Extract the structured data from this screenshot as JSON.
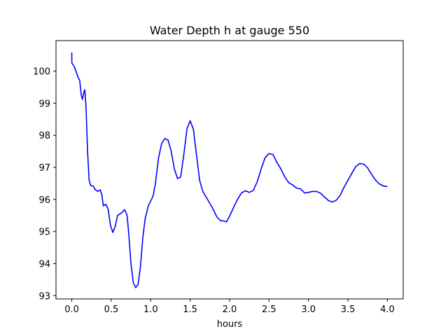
{
  "chart_data": {
    "type": "line",
    "title": "Water Depth h at gauge 550",
    "xlabel": "hours",
    "ylabel": "",
    "xlim": [
      -0.2,
      4.2
    ],
    "ylim": [
      92.9,
      100.95
    ],
    "xticks": [
      0.0,
      0.5,
      1.0,
      1.5,
      2.0,
      2.5,
      3.0,
      3.5,
      4.0
    ],
    "xtick_labels": [
      "0.0",
      "0.5",
      "1.0",
      "1.5",
      "2.0",
      "2.5",
      "3.0",
      "3.5",
      "4.0"
    ],
    "yticks": [
      93,
      94,
      95,
      96,
      97,
      98,
      99,
      100
    ],
    "ytick_labels": [
      "93",
      "94",
      "95",
      "96",
      "97",
      "98",
      "99",
      "100"
    ],
    "grid": false,
    "colors": {
      "line": "#0000ff",
      "axes": "#000000",
      "background": "#ffffff"
    },
    "series": [
      {
        "points": [
          [
            0.0,
            100.58
          ],
          [
            0.001,
            100.25
          ],
          [
            0.03,
            100.15
          ],
          [
            0.06,
            99.95
          ],
          [
            0.08,
            99.8
          ],
          [
            0.1,
            99.72
          ],
          [
            0.12,
            99.25
          ],
          [
            0.135,
            99.12
          ],
          [
            0.15,
            99.3
          ],
          [
            0.165,
            99.42
          ],
          [
            0.18,
            98.9
          ],
          [
            0.2,
            97.5
          ],
          [
            0.22,
            96.6
          ],
          [
            0.24,
            96.43
          ],
          [
            0.27,
            96.42
          ],
          [
            0.3,
            96.3
          ],
          [
            0.33,
            96.25
          ],
          [
            0.36,
            96.3
          ],
          [
            0.38,
            96.15
          ],
          [
            0.4,
            95.8
          ],
          [
            0.43,
            95.85
          ],
          [
            0.46,
            95.7
          ],
          [
            0.49,
            95.2
          ],
          [
            0.52,
            94.97
          ],
          [
            0.55,
            95.15
          ],
          [
            0.58,
            95.5
          ],
          [
            0.61,
            95.55
          ],
          [
            0.64,
            95.6
          ],
          [
            0.67,
            95.68
          ],
          [
            0.7,
            95.52
          ],
          [
            0.72,
            95.0
          ],
          [
            0.75,
            94.0
          ],
          [
            0.78,
            93.4
          ],
          [
            0.81,
            93.25
          ],
          [
            0.84,
            93.35
          ],
          [
            0.87,
            93.9
          ],
          [
            0.9,
            94.8
          ],
          [
            0.93,
            95.4
          ],
          [
            0.97,
            95.8
          ],
          [
            1.0,
            95.95
          ],
          [
            1.03,
            96.1
          ],
          [
            1.06,
            96.5
          ],
          [
            1.1,
            97.3
          ],
          [
            1.14,
            97.75
          ],
          [
            1.18,
            97.9
          ],
          [
            1.22,
            97.85
          ],
          [
            1.26,
            97.5
          ],
          [
            1.3,
            96.95
          ],
          [
            1.34,
            96.65
          ],
          [
            1.38,
            96.7
          ],
          [
            1.42,
            97.4
          ],
          [
            1.46,
            98.2
          ],
          [
            1.5,
            98.45
          ],
          [
            1.54,
            98.2
          ],
          [
            1.58,
            97.4
          ],
          [
            1.62,
            96.6
          ],
          [
            1.66,
            96.25
          ],
          [
            1.72,
            96.0
          ],
          [
            1.78,
            95.75
          ],
          [
            1.84,
            95.45
          ],
          [
            1.88,
            95.35
          ],
          [
            1.92,
            95.33
          ],
          [
            1.96,
            95.3
          ],
          [
            2.0,
            95.48
          ],
          [
            2.05,
            95.75
          ],
          [
            2.1,
            96.0
          ],
          [
            2.15,
            96.2
          ],
          [
            2.2,
            96.27
          ],
          [
            2.25,
            96.22
          ],
          [
            2.3,
            96.28
          ],
          [
            2.35,
            96.55
          ],
          [
            2.4,
            96.95
          ],
          [
            2.45,
            97.3
          ],
          [
            2.5,
            97.43
          ],
          [
            2.55,
            97.4
          ],
          [
            2.6,
            97.15
          ],
          [
            2.65,
            96.95
          ],
          [
            2.7,
            96.7
          ],
          [
            2.75,
            96.52
          ],
          [
            2.8,
            96.45
          ],
          [
            2.85,
            96.35
          ],
          [
            2.9,
            96.33
          ],
          [
            2.95,
            96.2
          ],
          [
            3.0,
            96.22
          ],
          [
            3.05,
            96.25
          ],
          [
            3.1,
            96.25
          ],
          [
            3.15,
            96.2
          ],
          [
            3.2,
            96.08
          ],
          [
            3.25,
            95.97
          ],
          [
            3.3,
            95.92
          ],
          [
            3.35,
            95.97
          ],
          [
            3.4,
            96.12
          ],
          [
            3.45,
            96.38
          ],
          [
            3.5,
            96.6
          ],
          [
            3.55,
            96.82
          ],
          [
            3.6,
            97.03
          ],
          [
            3.65,
            97.12
          ],
          [
            3.7,
            97.1
          ],
          [
            3.75,
            96.98
          ],
          [
            3.8,
            96.78
          ],
          [
            3.85,
            96.6
          ],
          [
            3.9,
            96.48
          ],
          [
            3.95,
            96.42
          ],
          [
            4.0,
            96.4
          ]
        ]
      }
    ]
  }
}
